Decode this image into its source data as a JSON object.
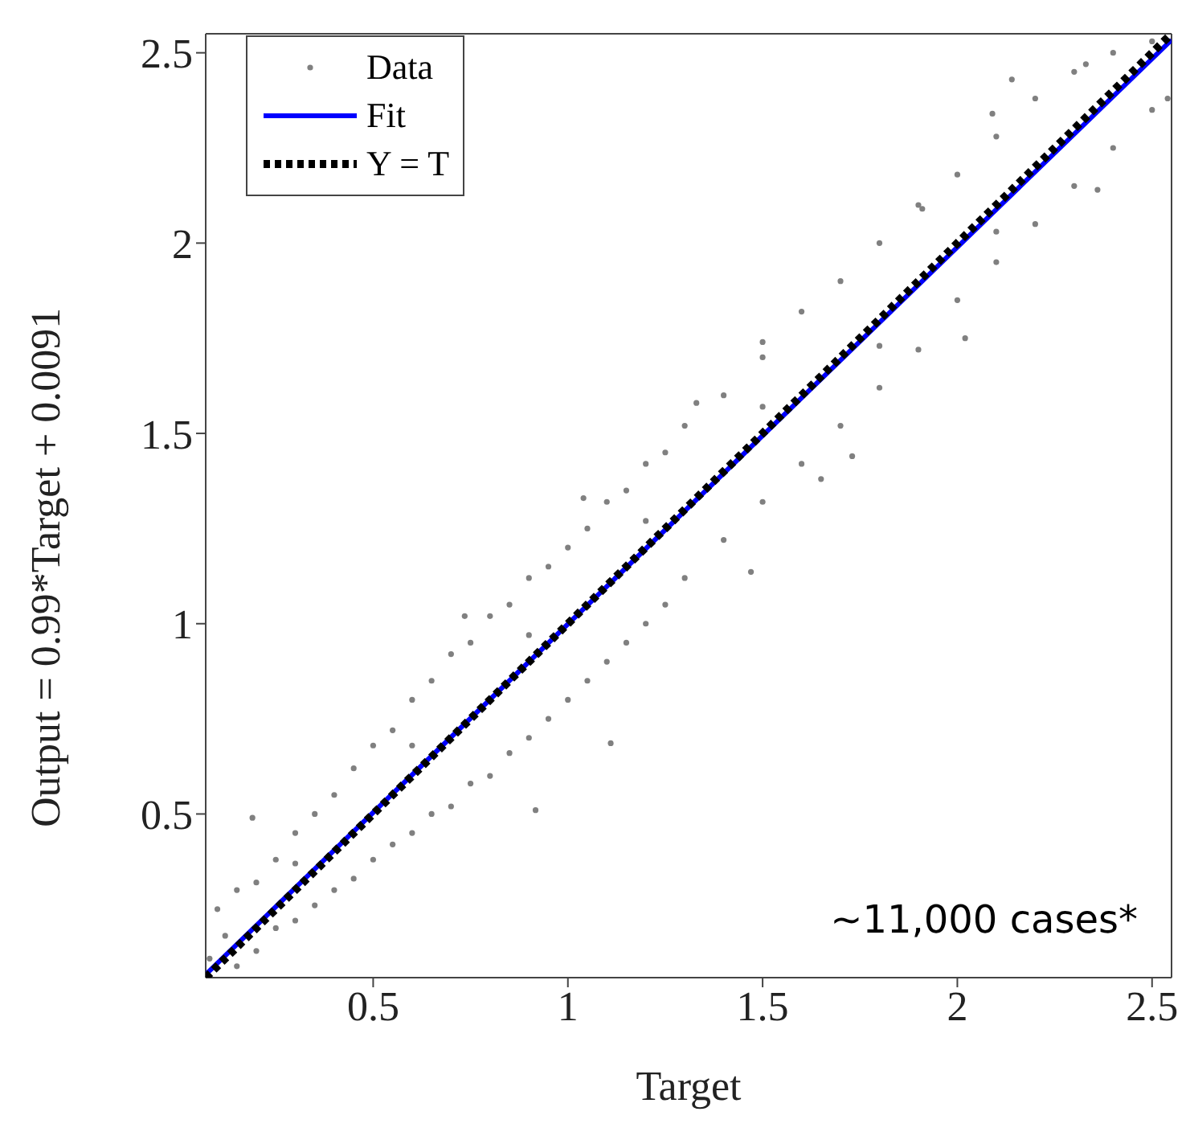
{
  "chart_data": {
    "type": "scatter",
    "xlabel": "Target",
    "ylabel": "Output  = 0.99*Target + 0.0091",
    "xlim": [
      0.07,
      2.55
    ],
    "ylim": [
      0.07,
      2.55
    ],
    "xticks": [
      0.5,
      1,
      1.5,
      2,
      2.5
    ],
    "yticks": [
      0.5,
      1,
      1.5,
      2,
      2.5
    ],
    "grid": false,
    "legend": "top left",
    "annotations": [
      "~11,000 cases*"
    ],
    "series": [
      {
        "name": "Data",
        "type": "scatter",
        "color": "#808080",
        "marker": "circle",
        "x": [
          0.08,
          0.1,
          0.12,
          0.15,
          0.15,
          0.19,
          0.2,
          0.2,
          0.25,
          0.25,
          0.3,
          0.3,
          0.3,
          0.35,
          0.35,
          0.4,
          0.4,
          0.45,
          0.45,
          0.5,
          0.5,
          0.55,
          0.55,
          0.6,
          0.6,
          0.6,
          0.65,
          0.65,
          0.7,
          0.7,
          0.735,
          0.75,
          0.75,
          0.8,
          0.8,
          0.85,
          0.85,
          0.9,
          0.9,
          0.9,
          0.917,
          0.95,
          0.95,
          1.0,
          1.0,
          1.04,
          1.05,
          1.05,
          1.1,
          1.1,
          1.11,
          1.15,
          1.15,
          1.2,
          1.2,
          1.2,
          1.25,
          1.25,
          1.3,
          1.3,
          1.33,
          1.4,
          1.4,
          1.47,
          1.5,
          1.5,
          1.5,
          1.5,
          1.6,
          1.6,
          1.65,
          1.7,
          1.7,
          1.73,
          1.8,
          1.8,
          1.8,
          1.9,
          1.9,
          1.91,
          2.0,
          2.0,
          2.02,
          2.09,
          2.1,
          2.1,
          2.1,
          2.14,
          2.2,
          2.2,
          2.3,
          2.3,
          2.33,
          2.36,
          2.4,
          2.4,
          2.5,
          2.5,
          2.54
        ],
        "values": [
          0.12,
          0.25,
          0.18,
          0.3,
          0.1,
          0.49,
          0.32,
          0.14,
          0.38,
          0.2,
          0.45,
          0.22,
          0.37,
          0.5,
          0.26,
          0.55,
          0.3,
          0.62,
          0.33,
          0.68,
          0.38,
          0.72,
          0.42,
          0.8,
          0.45,
          0.68,
          0.85,
          0.5,
          0.92,
          0.52,
          1.02,
          0.95,
          0.58,
          1.02,
          0.6,
          1.05,
          0.66,
          1.12,
          0.7,
          0.97,
          0.51,
          1.15,
          0.75,
          1.2,
          0.8,
          1.33,
          1.25,
          0.85,
          1.32,
          0.9,
          0.686,
          1.35,
          0.95,
          1.42,
          1.0,
          1.27,
          1.45,
          1.05,
          1.52,
          1.12,
          1.58,
          1.6,
          1.22,
          1.136,
          1.7,
          1.32,
          1.57,
          1.74,
          1.82,
          1.42,
          1.38,
          1.9,
          1.52,
          1.44,
          2.0,
          1.62,
          1.73,
          2.1,
          1.72,
          2.09,
          2.18,
          1.85,
          1.75,
          2.34,
          2.28,
          1.95,
          2.03,
          2.43,
          2.38,
          2.05,
          2.45,
          2.15,
          2.47,
          2.14,
          2.5,
          2.25,
          2.53,
          2.35,
          2.38
        ]
      },
      {
        "name": "Fit",
        "type": "line",
        "color": "#0000ff",
        "marker": "none",
        "line_style": "solid",
        "x": [
          0.07,
          2.55
        ],
        "values": [
          0.078,
          2.534
        ]
      },
      {
        "name": "Y = T",
        "type": "line",
        "color": "#000000",
        "marker": "none",
        "line_style": "dotted",
        "x": [
          0.07,
          2.55
        ],
        "values": [
          0.07,
          2.55
        ]
      }
    ]
  }
}
